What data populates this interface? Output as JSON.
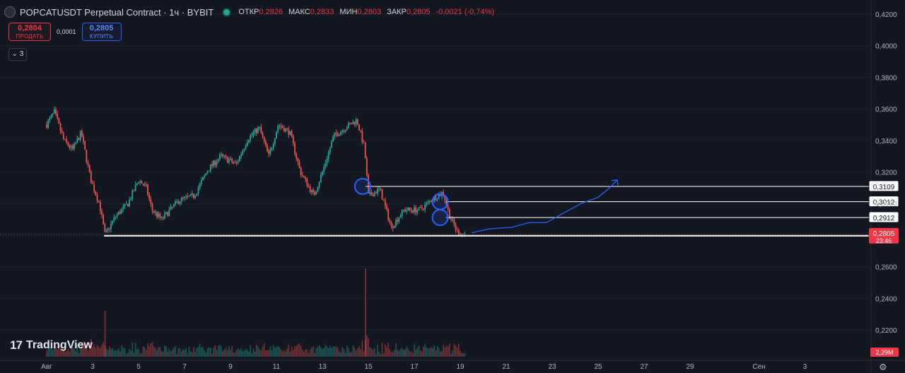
{
  "header": {
    "title": "POPCATUSDT Perpetual Contract · 1ч · BYBIT",
    "open_label": "ОТКР",
    "open": "0,2826",
    "high_label": "МАКС",
    "high": "0,2833",
    "low_label": "МИН",
    "low": "0,2803",
    "close_label": "ЗАКР",
    "close": "0,2805",
    "change": "-0,0021 (-0,74%)"
  },
  "trade": {
    "sell_price": "0,2804",
    "sell_label": "ПРОДАТЬ",
    "spread": "0,0001",
    "buy_price": "0,2805",
    "buy_label": "КУПИТЬ"
  },
  "indicators_toggle": "3",
  "logo": {
    "text": "TradingView"
  },
  "colors": {
    "up": "#26a69a",
    "down": "#ef5350",
    "background": "#131722",
    "drawing": "#2962ff",
    "level": "#ffffff"
  },
  "chart_data": {
    "type": "candlestick",
    "symbol": "POPCATUSDT",
    "timeframe": "1ч",
    "x_ticks": [
      "Авг",
      "3",
      "5",
      "7",
      "9",
      "11",
      "13",
      "15",
      "17",
      "19",
      "21",
      "23",
      "25",
      "27",
      "29",
      "Сен",
      "3"
    ],
    "y_ticks": [
      "0,4200",
      "0,4000",
      "0,3800",
      "0,3600",
      "0,3400",
      "0,3200",
      "0,3000",
      "0,2800",
      "0,2600",
      "0,2400",
      "0,2200"
    ],
    "y_range": [
      0.215,
      0.424
    ],
    "price_path": [
      [
        "2024-08-01 00:00",
        0.35
      ],
      [
        "2024-08-01 08:00",
        0.358
      ],
      [
        "2024-08-01 18:00",
        0.34
      ],
      [
        "2024-08-02 03:00",
        0.334
      ],
      [
        "2024-08-02 12:00",
        0.345
      ],
      [
        "2024-08-02 22:00",
        0.315
      ],
      [
        "2024-08-03 07:00",
        0.3
      ],
      [
        "2024-08-03 13:00",
        0.28
      ],
      [
        "2024-08-04 00:00",
        0.292
      ],
      [
        "2024-08-04 13:00",
        0.3
      ],
      [
        "2024-08-05 00:00",
        0.315
      ],
      [
        "2024-08-05 08:00",
        0.31
      ],
      [
        "2024-08-05 14:00",
        0.296
      ],
      [
        "2024-08-06 00:00",
        0.29
      ],
      [
        "2024-08-06 18:00",
        0.302
      ],
      [
        "2024-08-07 10:00",
        0.305
      ],
      [
        "2024-08-08 01:00",
        0.322
      ],
      [
        "2024-08-08 14:00",
        0.33
      ],
      [
        "2024-08-09 06:00",
        0.325
      ],
      [
        "2024-08-09 18:00",
        0.341
      ],
      [
        "2024-08-10 06:00",
        0.348
      ],
      [
        "2024-08-10 16:00",
        0.33
      ],
      [
        "2024-08-11 02:00",
        0.35
      ],
      [
        "2024-08-11 14:00",
        0.345
      ],
      [
        "2024-08-12 01:00",
        0.32
      ],
      [
        "2024-08-12 15:00",
        0.305
      ],
      [
        "2024-08-13 00:00",
        0.32
      ],
      [
        "2024-08-13 12:00",
        0.343
      ],
      [
        "2024-08-14 00:00",
        0.348
      ],
      [
        "2024-08-14 12:00",
        0.353
      ],
      [
        "2024-08-14 20:00",
        0.335
      ],
      [
        "2024-08-15 00:00",
        0.305
      ],
      [
        "2024-08-15 12:00",
        0.309
      ],
      [
        "2024-08-16 00:00",
        0.285
      ],
      [
        "2024-08-16 13:00",
        0.296
      ],
      [
        "2024-08-17 06:00",
        0.296
      ],
      [
        "2024-08-17 19:00",
        0.303
      ],
      [
        "2024-08-18 06:00",
        0.307
      ],
      [
        "2024-08-18 13:00",
        0.292
      ],
      [
        "2024-08-18 21:00",
        0.282
      ],
      [
        "2024-08-19 05:00",
        0.2805
      ]
    ],
    "horizontal_levels": [
      "0,3109",
      "0,3012",
      "0,2912",
      "0,2796"
    ],
    "marked_prices": [
      0.3109,
      0.3012,
      0.2912
    ],
    "projection_path": [
      [
        "2024-08-19 12:00",
        0.2815
      ],
      [
        "2024-08-20 06:00",
        0.284
      ],
      [
        "2024-08-21 06:00",
        0.285
      ],
      [
        "2024-08-22 00:00",
        0.288
      ],
      [
        "2024-08-22 18:00",
        0.288
      ],
      [
        "2024-08-23 12:00",
        0.294
      ],
      [
        "2024-08-24 06:00",
        0.3
      ],
      [
        "2024-08-25 00:00",
        0.304
      ],
      [
        "2024-08-25 12:00",
        0.31
      ],
      [
        "2024-08-25 20:00",
        0.315
      ]
    ],
    "last_price": {
      "price": "0,2805",
      "countdown": "23:46"
    },
    "volume_last": "2,29M"
  }
}
